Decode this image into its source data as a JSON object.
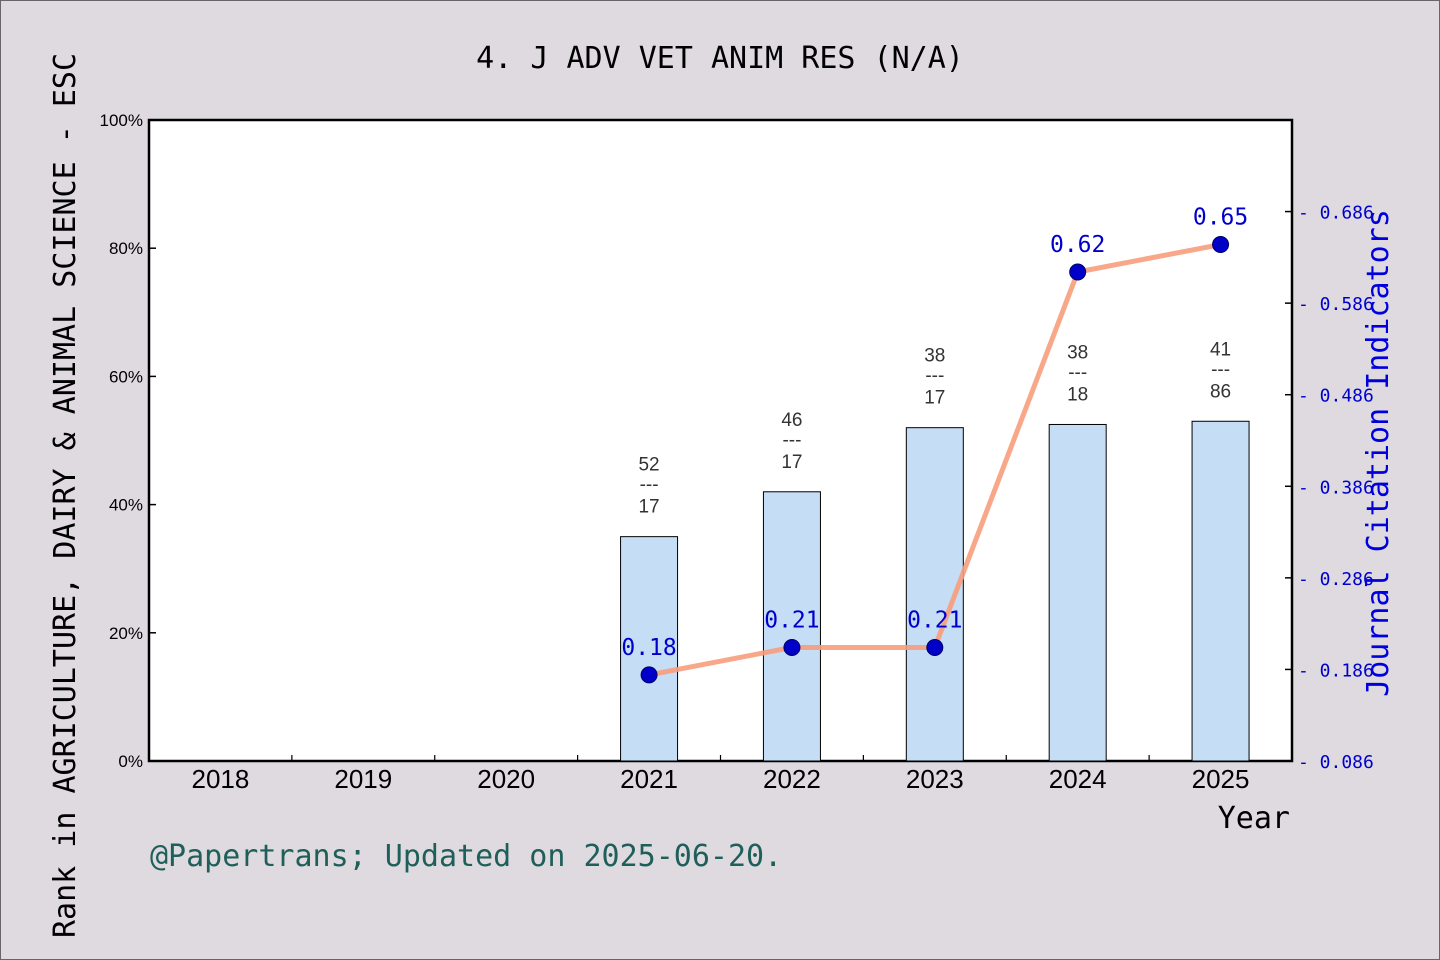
{
  "chart_data": {
    "type": "bar",
    "title": "4. J ADV VET ANIM RES (N/A)",
    "xlabel": "Year",
    "ylabel": "Rank in AGRICULTURE, DAIRY & ANIMAL SCIENCE - ESC",
    "y2label": "Journal Citation Indicators",
    "categories": [
      "2018",
      "2019",
      "2020",
      "2021",
      "2022",
      "2023",
      "2024",
      "2025"
    ],
    "ylim": [
      0,
      100
    ],
    "yticks": [
      "0%",
      "20%",
      "40%",
      "60%",
      "80%",
      "100%"
    ],
    "y2lim": [
      0.086,
      0.786
    ],
    "y2ticks": [
      "0.086",
      "0.186",
      "0.286",
      "0.386",
      "0.486",
      "0.586",
      "0.686"
    ],
    "bars": [
      {
        "year": "2021",
        "value": 35,
        "rank": "52",
        "sep": "---",
        "total": "17"
      },
      {
        "year": "2022",
        "value": 42,
        "rank": "46",
        "sep": "---",
        "total": "17"
      },
      {
        "year": "2023",
        "value": 52,
        "rank": "38",
        "sep": "---",
        "total": "17"
      },
      {
        "year": "2024",
        "value": 52.5,
        "rank": "38",
        "sep": "---",
        "total": "18"
      },
      {
        "year": "2025",
        "value": 53,
        "rank": "41",
        "sep": "---",
        "total": "86"
      }
    ],
    "line": {
      "points": [
        {
          "year": "2021",
          "value": 0.18,
          "label": "0.18"
        },
        {
          "year": "2022",
          "value": 0.21,
          "label": "0.21"
        },
        {
          "year": "2023",
          "value": 0.21,
          "label": "0.21"
        },
        {
          "year": "2024",
          "value": 0.62,
          "label": "0.62"
        },
        {
          "year": "2025",
          "value": 0.65,
          "label": "0.65"
        }
      ]
    },
    "grid": false,
    "colors": {
      "bar_fill": "#c5def5",
      "bar_stroke": "#000000",
      "line": "#f79d7c",
      "point": "#0000c8",
      "right_axis": "#0000ff"
    }
  },
  "footer": "@Papertrans; Updated on 2025-06-20."
}
